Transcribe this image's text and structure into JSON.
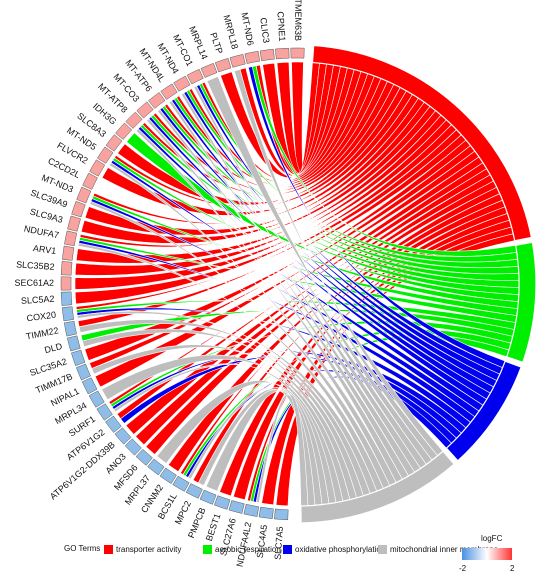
{
  "chart_data": {
    "type": "chord",
    "genes": [
      {
        "name": "TMEM63B",
        "logFC": 1.3
      },
      {
        "name": "CPNE1",
        "logFC": 1.3
      },
      {
        "name": "CLIC3",
        "logFC": 1.3
      },
      {
        "name": "MT-ND6",
        "logFC": 1.3
      },
      {
        "name": "MRPL18",
        "logFC": 1.3
      },
      {
        "name": "PLTP",
        "logFC": 1.3
      },
      {
        "name": "MRPL14",
        "logFC": 1.3
      },
      {
        "name": "MT-CO1",
        "logFC": 1.3
      },
      {
        "name": "MT-ND4",
        "logFC": 1.3
      },
      {
        "name": "MT-ND4L",
        "logFC": 1.3
      },
      {
        "name": "MT-ATP6",
        "logFC": 1.3
      },
      {
        "name": "MT-CO3",
        "logFC": 1.3
      },
      {
        "name": "MT-ATP8",
        "logFC": 1.3
      },
      {
        "name": "IDH3G",
        "logFC": 1.3
      },
      {
        "name": "SLC8A3",
        "logFC": 1.3
      },
      {
        "name": "MT-ND5",
        "logFC": 1.3
      },
      {
        "name": "FLVCR2",
        "logFC": 1.3
      },
      {
        "name": "C2CD2L",
        "logFC": 1.3
      },
      {
        "name": "MT-ND3",
        "logFC": 1.3
      },
      {
        "name": "SLC39A9",
        "logFC": 1.3
      },
      {
        "name": "SLC9A3",
        "logFC": 1.3
      },
      {
        "name": "NDUFA7",
        "logFC": 1.3
      },
      {
        "name": "ARV1",
        "logFC": 1.3
      },
      {
        "name": "SLC35B2",
        "logFC": 1.3
      },
      {
        "name": "SEC61A2",
        "logFC": 1.3
      },
      {
        "name": "SLC5A2",
        "logFC": -1.3
      },
      {
        "name": "COX20",
        "logFC": -1.3
      },
      {
        "name": "TIMM22",
        "logFC": -1.3
      },
      {
        "name": "DLD",
        "logFC": -1.3
      },
      {
        "name": "SLC35A2",
        "logFC": -1.3
      },
      {
        "name": "TIMM17B",
        "logFC": -1.3
      },
      {
        "name": "NIPAL1",
        "logFC": -1.3
      },
      {
        "name": "MRPL34",
        "logFC": -1.3
      },
      {
        "name": "SURF1",
        "logFC": -1.3
      },
      {
        "name": "ATP6V1G2",
        "logFC": -1.3
      },
      {
        "name": "ATP6V1G2-DDX39B",
        "logFC": -1.3
      },
      {
        "name": "ANO3",
        "logFC": -1.3
      },
      {
        "name": "MFSD6",
        "logFC": -1.3
      },
      {
        "name": "MRPL37",
        "logFC": -1.3
      },
      {
        "name": "CNNM2",
        "logFC": -1.3
      },
      {
        "name": "BCS1L",
        "logFC": -1.3
      },
      {
        "name": "MPC2",
        "logFC": -1.3
      },
      {
        "name": "PMPCB",
        "logFC": -1.3
      },
      {
        "name": "BEST1",
        "logFC": -1.3
      },
      {
        "name": "SLC27A6",
        "logFC": -1.3
      },
      {
        "name": "NDUFA4L2",
        "logFC": -1.3
      },
      {
        "name": "SLC4A5",
        "logFC": -1.3
      },
      {
        "name": "SLC7A5",
        "logFC": -1.3
      }
    ],
    "terms": [
      {
        "name": "transporter activity",
        "color": "#ff0000",
        "genes": [
          "TMEM63B",
          "CPNE1",
          "CLIC3",
          "MT-ND6",
          "MRPL18",
          "PLTP",
          "MT-CO1",
          "MT-ND4",
          "MT-ND4L",
          "MT-ATP6",
          "MT-CO3",
          "MT-ATP8",
          "SLC8A3",
          "MT-ND5",
          "FLVCR2",
          "MT-ND3",
          "SLC39A9",
          "SLC9A3",
          "NDUFA7",
          "ARV1",
          "SLC35B2",
          "SEC61A2",
          "SLC5A2",
          "COX20",
          "TIMM22",
          "SLC35A2",
          "TIMM17B",
          "NIPAL1",
          "SURF1",
          "ATP6V1G2",
          "ATP6V1G2-DDX39B",
          "ANO3",
          "MFSD6",
          "CNNM2",
          "BCS1L",
          "MPC2",
          "BEST1",
          "SLC27A6",
          "NDUFA4L2",
          "SLC4A5",
          "SLC7A5"
        ]
      },
      {
        "name": "aerobic respiration",
        "color": "#00ee00",
        "genes": [
          "MT-ND6",
          "MT-CO1",
          "MT-ND4",
          "MT-ND4L",
          "MT-ATP6",
          "MT-CO3",
          "MT-ATP8",
          "IDH3G",
          "MT-ND5",
          "MT-ND3",
          "NDUFA7",
          "COX20",
          "DLD",
          "SURF1",
          "BCS1L",
          "NDUFA4L2"
        ]
      },
      {
        "name": "oxidative phosphorylation",
        "color": "#0000ee",
        "genes": [
          "MT-ND6",
          "MT-CO1",
          "MT-ND4",
          "MT-ND4L",
          "MT-ATP6",
          "MT-CO3",
          "MT-ATP8",
          "MT-ND5",
          "MT-ND3",
          "NDUFA7",
          "COX20",
          "SURF1",
          "ATP6V1G2",
          "BCS1L",
          "NDUFA4L2"
        ]
      },
      {
        "name": "mitochondrial inner membrane",
        "color": "#bebebe",
        "genes": [
          "MRPL18",
          "MRPL14",
          "MT-CO1",
          "MT-ND4",
          "MT-ND4L",
          "MT-ATP6",
          "MT-CO3",
          "MT-ATP8",
          "MT-ND5",
          "MT-ND3",
          "NDUFA7",
          "COX20",
          "TIMM22",
          "DLD",
          "TIMM17B",
          "MRPL34",
          "SURF1",
          "MRPL37",
          "BCS1L",
          "MPC2",
          "PMPCB",
          "NDUFA4L2",
          "SLC25A"
        ]
      }
    ],
    "legend": {
      "title": "GO Terms",
      "items": [
        "transporter activity",
        "aerobic respiration",
        "oxidative phosphorylation",
        "mitochondrial inner membrane"
      ],
      "placement": "bottom"
    },
    "colorbar": {
      "title": "logFC",
      "min_label": "-2",
      "max_label": "2",
      "range": [
        -2,
        2
      ],
      "colors": [
        "#4a90e2",
        "#ffffff",
        "#ff3333"
      ]
    },
    "legend_colors": [
      "#ff0000",
      "#00ee00",
      "#0000ee",
      "#bebebe"
    ]
  }
}
